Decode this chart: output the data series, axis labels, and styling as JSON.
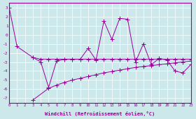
{
  "line1_x": [
    0,
    1,
    3,
    4,
    5,
    6,
    7,
    8,
    9,
    10,
    11,
    12,
    13,
    14,
    15,
    16,
    17,
    18,
    19,
    20,
    21,
    22,
    23
  ],
  "line1_y": [
    3.0,
    -1.3,
    -2.5,
    -3.0,
    -5.8,
    -2.9,
    -2.7,
    -2.7,
    -2.7,
    -1.5,
    -2.8,
    1.5,
    -0.5,
    1.8,
    1.7,
    -3.0,
    -1.0,
    -3.3,
    -2.6,
    -2.8,
    -4.0,
    -4.2,
    -3.3
  ],
  "line2_x": [
    3,
    4,
    5,
    6,
    7,
    8,
    9,
    10,
    11,
    12,
    13,
    14,
    15,
    16,
    17,
    18,
    19,
    20,
    21,
    22,
    23
  ],
  "line2_y": [
    -2.5,
    -2.7,
    -2.7,
    -2.7,
    -2.7,
    -2.7,
    -2.7,
    -2.7,
    -2.7,
    -2.7,
    -2.7,
    -2.7,
    -2.7,
    -2.7,
    -2.7,
    -2.7,
    -2.7,
    -2.7,
    -2.7,
    -2.7,
    -2.7
  ],
  "line3_x": [
    3,
    5,
    6,
    7,
    8,
    9,
    10,
    11,
    12,
    13,
    14,
    15,
    16,
    17,
    18,
    19,
    20,
    21,
    22,
    23
  ],
  "line3_y": [
    -7.2,
    -5.9,
    -5.55,
    -5.25,
    -5.0,
    -4.8,
    -4.6,
    -4.4,
    -4.2,
    -4.05,
    -3.9,
    -3.75,
    -3.6,
    -3.5,
    -3.4,
    -3.3,
    -3.2,
    -3.1,
    -3.0,
    -2.9
  ],
  "color": "#990099",
  "bgcolor": "#cce8ea",
  "xlabel": "Windchill (Refroidissement éolien,°C)",
  "xlim": [
    0,
    23
  ],
  "ylim": [
    -7.5,
    3.5
  ],
  "yticks": [
    3,
    2,
    1,
    0,
    -1,
    -2,
    -3,
    -4,
    -5,
    -6,
    -7
  ],
  "xticks": [
    0,
    1,
    2,
    3,
    4,
    5,
    6,
    7,
    8,
    9,
    10,
    11,
    12,
    13,
    14,
    15,
    16,
    17,
    18,
    19,
    20,
    21,
    22,
    23
  ],
  "markersize": 2.0,
  "linewidth": 0.7,
  "grid_color": "#b0d8dc"
}
